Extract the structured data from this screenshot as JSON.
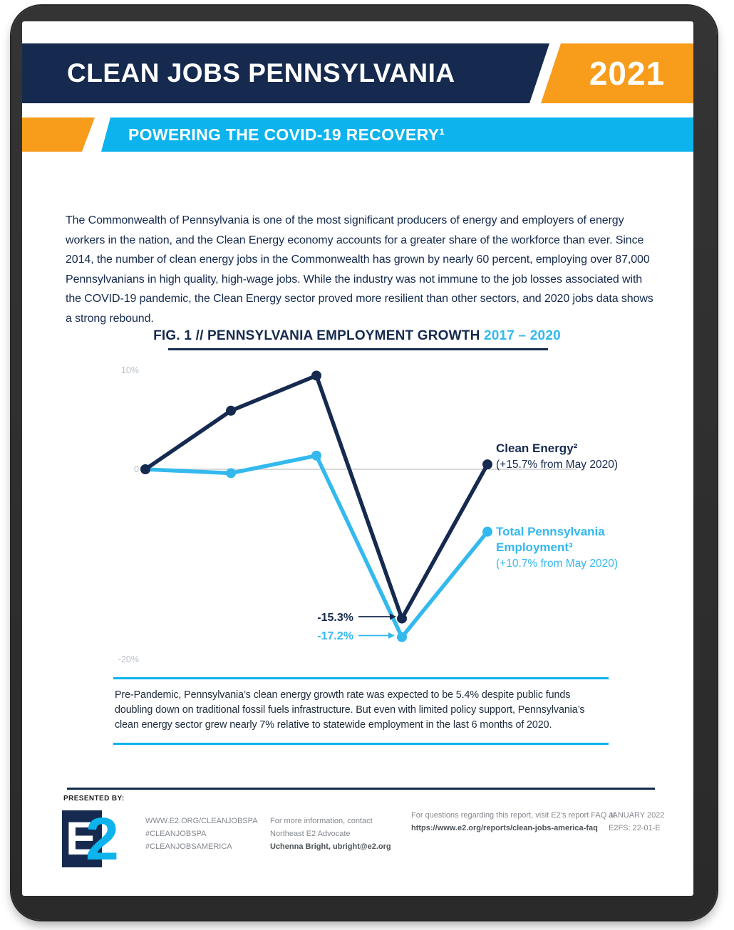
{
  "header": {
    "title": "CLEAN JOBS PENNSYLVANIA",
    "year": "2021",
    "subtitle": "POWERING THE COVID-19 RECOVERY¹"
  },
  "intro_text": "The Commonwealth of Pennsylvania is one of the most significant producers of energy and employers of energy workers in the nation, and the Clean Energy economy accounts for a greater share of the workforce than ever. Since 2014, the number of clean energy jobs in the Commonwealth has grown by nearly 60 percent, employing over 87,000 Pennsylvanians in high quality, high-wage jobs. While the industry was not immune to the job losses associated with the COVID-19 pandemic, the Clean Energy sector proved more resilient than other sectors, and 2020 jobs data shows a strong rebound.",
  "figure": {
    "title_main": "FIG. 1 // PENNSYLVANIA EMPLOYMENT GROWTH ",
    "title_years": "2017 – 2020"
  },
  "chart_data": {
    "type": "line",
    "title": "FIG. 1 // PENNSYLVANIA EMPLOYMENT GROWTH 2017 – 2020",
    "x_points": 5,
    "x_axis_labels_visible": false,
    "y_ticks": [
      "10%",
      "0",
      "-20%"
    ],
    "ylim": [
      -20,
      10
    ],
    "grid": "zero-line-only",
    "legend_position": "right of line ends",
    "series": [
      {
        "name": "Clean Energy²",
        "color": "#152a4e",
        "values_pct": [
          0,
          6.0,
          9.6,
          -15.3,
          0.5
        ],
        "trough_label": "-15.3%",
        "end_annotation": "(+15.7% from May 2020)"
      },
      {
        "name": "Total Pennsylvania Employment³",
        "name_line1": "Total Pennsylvania",
        "name_line2": "Employment³",
        "color": "#33b9ee",
        "values_pct": [
          0,
          -0.4,
          1.4,
          -17.2,
          -6.4
        ],
        "trough_label": "-17.2%",
        "end_annotation": "(+10.7% from May 2020)"
      }
    ]
  },
  "callout_text": "Pre-Pandemic, Pennsylvania’s clean energy growth rate was expected to be 5.4% despite public funds doubling down on traditional fossil fuels infrastructure. But even with limited policy support, Pennsylvania’s clean energy sector grew nearly 7% relative to statewide employment in the last 6 months of 2020.",
  "footer": {
    "presented_by": "PRESENTED BY:",
    "logo_e": "E",
    "logo_2": "2",
    "links": [
      "WWW.E2.ORG/CLEANJOBSPA",
      "#CLEANJOBSPA",
      "#CLEANJOBSAMERICA"
    ],
    "contact": [
      "For more information, contact",
      "Northeast E2 Advocate",
      "Uchenna Bright, ubright@e2.org"
    ],
    "faq_line1": "For questions regarding this report, visit E2’s report FAQ at",
    "faq_line2": "https://www.e2.org/reports/clean-jobs-america-faq",
    "date": "JANUARY 2022",
    "code": "E2FS: 22-01-E"
  },
  "colors": {
    "navy": "#152a4e",
    "orange": "#f89c1c",
    "cyan_banner": "#0cb3ec",
    "chart_blue": "#33b9ee",
    "zero_gridline": "#d9d9d9",
    "tick_gray": "#b9bfc6",
    "footer_gray": "#84888d"
  }
}
